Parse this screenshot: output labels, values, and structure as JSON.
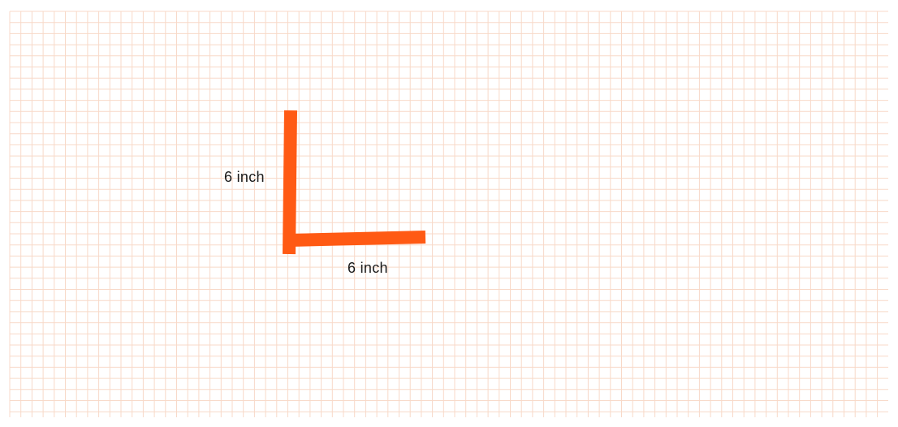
{
  "diagram": {
    "vertical_segment": {
      "length_label": "6 inch"
    },
    "horizontal_segment": {
      "length_label": "6 inch"
    }
  },
  "colors": {
    "segment": "#ff5a14",
    "grid_line": "#f8d9c8",
    "background": "#ffffff",
    "label_text": "#1a1a1a"
  }
}
